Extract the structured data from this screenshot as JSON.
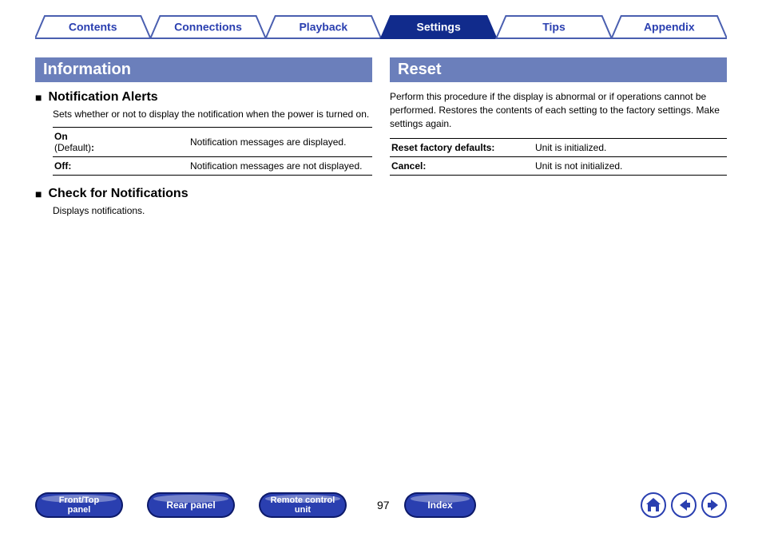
{
  "colors": {
    "active_tab": "#112b8c",
    "inactive_tab_border": "#4a5fb0",
    "inactive_tab_text": "#2a3fb0",
    "section_bar": "#6b7fbb",
    "pill_fill": "#2a3fb0",
    "pill_edge": "#0d1a6a",
    "icon_stroke": "#2a3fb0"
  },
  "tabs": [
    {
      "label": "Contents",
      "active": false
    },
    {
      "label": "Connections",
      "active": false
    },
    {
      "label": "Playback",
      "active": false
    },
    {
      "label": "Settings",
      "active": true
    },
    {
      "label": "Tips",
      "active": false
    },
    {
      "label": "Appendix",
      "active": false
    }
  ],
  "left": {
    "title": "Information",
    "sections": [
      {
        "heading": "Notification Alerts",
        "desc": "Sets whether or not to display the notification when the power is turned on.",
        "options": [
          {
            "key_main": "On",
            "key_sub": "(Default):",
            "val": "Notification messages are displayed."
          },
          {
            "key_main": "Off:",
            "key_sub": "",
            "val": "Notification messages are not displayed."
          }
        ]
      },
      {
        "heading": "Check for Notifications",
        "desc": "Displays notifications.",
        "options": []
      }
    ]
  },
  "right": {
    "title": "Reset",
    "body": "Perform this procedure if the display is abnormal or if operations cannot be performed. Restores the contents of each setting to the factory settings. Make settings again.",
    "options": [
      {
        "key": "Reset factory defaults:",
        "val": "Unit is initialized."
      },
      {
        "key": "Cancel:",
        "val": "Unit is not initialized."
      }
    ]
  },
  "footer": {
    "pills": [
      {
        "lines": [
          "Front/Top",
          "panel"
        ]
      },
      {
        "lines": [
          "Rear panel"
        ]
      },
      {
        "lines": [
          "Remote control",
          "unit"
        ]
      }
    ],
    "page_number": "97",
    "index_label": "Index"
  }
}
